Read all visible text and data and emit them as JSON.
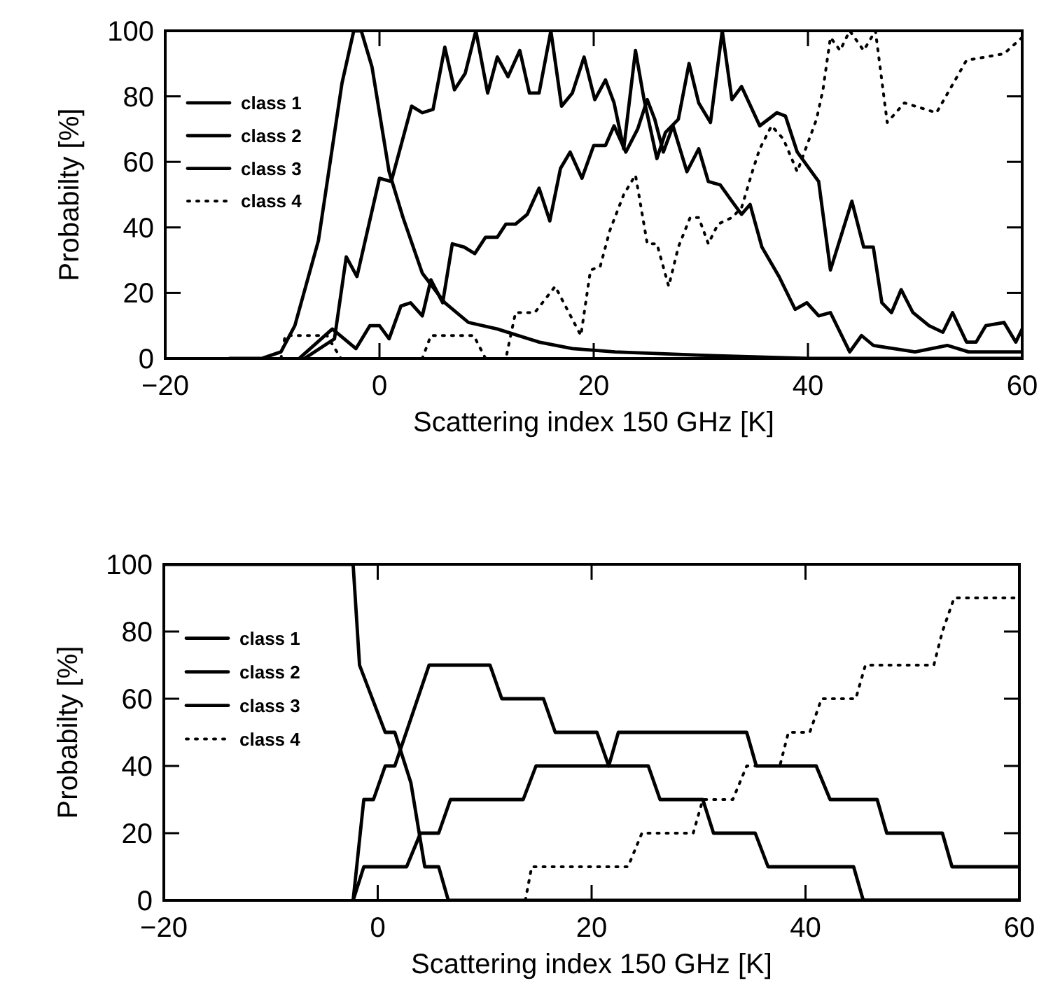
{
  "chart_data": [
    {
      "type": "line",
      "xlabel": "Scattering index 150 GHz [K]",
      "ylabel": "Probabilty [%]",
      "xlim": [
        -20,
        60
      ],
      "ylim": [
        0,
        100
      ],
      "xticks": [
        -20,
        0,
        20,
        40,
        60
      ],
      "yticks": [
        0,
        20,
        40,
        60,
        80,
        100
      ],
      "legend": "top left",
      "series": [
        {
          "name": "class 1",
          "color": "#000000",
          "line_style": "solid",
          "x": [
            -14,
            -11,
            -9.2,
            -7.9,
            -5.7,
            -3.5,
            -2.4,
            -1.7,
            -0.7,
            0.9,
            2.2,
            4.0,
            6.1,
            8.3,
            11,
            14.9,
            18,
            22,
            30,
            40,
            60
          ],
          "values": [
            0,
            0,
            2,
            10,
            36,
            84,
            100,
            100,
            89,
            57,
            43,
            26,
            17,
            11,
            9,
            5,
            3,
            2,
            1,
            0,
            0
          ]
        },
        {
          "name": "class 2",
          "color": "#000000",
          "line_style": "solid",
          "x": [
            -7,
            -4.2,
            -3.1,
            -2.1,
            0,
            1.1,
            3,
            4,
            5,
            6.1,
            7,
            8,
            9,
            10.1,
            11,
            12,
            13.1,
            14,
            14.9,
            16,
            17,
            18,
            19.1,
            20.1,
            21.1,
            21.9,
            22.8,
            23.9,
            24.7,
            25.9,
            26.7,
            27.9,
            28.9,
            29.8,
            30.9,
            32,
            32.9,
            33.8,
            35.5,
            37.1,
            37.9,
            39,
            41,
            42.1,
            44.1,
            45.2,
            46.1,
            46.9,
            47.8,
            48.7,
            49.8,
            51.3,
            52.6,
            53.5,
            54.8,
            55.7,
            56.6,
            58.3,
            59.4,
            60
          ],
          "values": [
            0,
            6,
            31,
            25,
            55,
            54,
            77,
            75,
            76,
            95,
            82,
            87,
            100,
            81,
            92,
            86,
            94,
            81,
            81,
            100,
            77,
            81,
            92,
            79,
            85,
            78,
            64,
            94,
            79,
            61,
            69,
            73,
            90,
            78,
            72,
            100,
            79,
            83,
            71,
            75,
            74,
            63,
            54,
            27,
            48,
            34,
            34,
            17,
            14,
            21,
            14,
            10,
            8,
            14,
            5,
            5,
            10,
            11,
            5,
            9
          ]
        },
        {
          "name": "class 3",
          "color": "#000000",
          "line_style": "solid",
          "x": [
            -7.5,
            -4.4,
            -2.2,
            -0.9,
            0,
            0.9,
            2,
            2.9,
            4,
            4.8,
            5.9,
            6.8,
            7.9,
            8.9,
            9.9,
            11,
            11.8,
            12.7,
            13.8,
            14.9,
            15.9,
            16.9,
            17.8,
            18.9,
            20,
            21.1,
            21.9,
            23,
            24.1,
            25,
            25.7,
            26.5,
            27.4,
            28.7,
            29.8,
            30.7,
            31.8,
            32.9,
            33.8,
            34.6,
            35.7,
            37.3,
            38.8,
            39.9,
            41,
            42.1,
            43.9,
            45,
            46.1,
            48,
            50,
            53,
            55,
            60
          ],
          "values": [
            0,
            9,
            3,
            10,
            10,
            6,
            16,
            17,
            13,
            24,
            17,
            35,
            34,
            32,
            37,
            37,
            41,
            41,
            44,
            52,
            42,
            58,
            63,
            55,
            65,
            65,
            71,
            63,
            70,
            79,
            73,
            63,
            71,
            57,
            64,
            54,
            53,
            48,
            44,
            47,
            34,
            25,
            15,
            17,
            13,
            14,
            2,
            7,
            4,
            3,
            2,
            4,
            2,
            2
          ]
        },
        {
          "name": "class 4",
          "color": "#000000",
          "line_style": "dotted",
          "x": [
            -9.2,
            -8.8,
            -7.5,
            -4.9,
            -3.6,
            4,
            4.8,
            8.8,
            9.9,
            11.8,
            12.7,
            14.5,
            16.4,
            18.8,
            19.7,
            20.6,
            21.5,
            22.8,
            23.9,
            25,
            25.9,
            27,
            27.9,
            29,
            29.8,
            30.7,
            31.6,
            32.9,
            33.8,
            34.9,
            35.5,
            36.6,
            37.7,
            39,
            39.9,
            40.8,
            41.4,
            42.1,
            43,
            43.9,
            45.2,
            46.3,
            47.4,
            49,
            52,
            54.8,
            58.3,
            60
          ],
          "values": [
            0,
            7,
            7,
            7,
            0,
            0,
            7,
            7,
            0,
            0,
            14,
            14,
            22,
            7,
            27,
            28,
            39,
            50,
            56,
            35,
            35,
            22,
            34,
            43,
            43,
            35,
            41,
            43,
            46,
            58,
            64,
            71,
            67,
            57,
            65,
            73,
            82,
            98,
            94,
            100,
            94,
            100,
            72,
            78,
            75,
            91,
            93,
            98
          ]
        }
      ]
    },
    {
      "type": "line",
      "xlabel": "Scattering index 150 GHz [K]",
      "ylabel": "Probabilty [%]",
      "xlim": [
        -20,
        60
      ],
      "ylim": [
        0,
        100
      ],
      "xticks": [
        -20,
        0,
        20,
        40,
        60
      ],
      "yticks": [
        0,
        20,
        40,
        60,
        80,
        100
      ],
      "legend": "top left",
      "series": [
        {
          "name": "class 1",
          "color": "#000000",
          "line_style": "solid",
          "x": [
            -20,
            -2.3,
            -1.7,
            0.7,
            1.6,
            3.1,
            4.4,
            5.7,
            6.6,
            60
          ],
          "values": [
            100,
            100,
            70,
            50,
            50,
            35,
            10,
            10,
            0,
            0
          ]
        },
        {
          "name": "class 2",
          "color": "#000000",
          "line_style": "solid",
          "x": [
            -2.3,
            -1.3,
            -0.4,
            0.7,
            1.6,
            4.8,
            10.5,
            11.6,
            15.5,
            16.6,
            20.5,
            21.6,
            22.5,
            34.5,
            35.4,
            41,
            42.3,
            46.7,
            47.6,
            52.8,
            53.7,
            60
          ],
          "values": [
            0,
            30,
            30,
            40,
            40,
            70,
            70,
            60,
            60,
            50,
            50,
            40,
            50,
            50,
            40,
            40,
            30,
            30,
            20,
            20,
            10,
            10
          ]
        },
        {
          "name": "class 3",
          "color": "#000000",
          "line_style": "solid",
          "x": [
            -2.3,
            -1.3,
            2.7,
            4,
            5.7,
            6.8,
            13.6,
            14.8,
            25.3,
            26.4,
            30.4,
            31.4,
            35.3,
            36.5,
            44.5,
            45.4,
            60
          ],
          "values": [
            0,
            10,
            10,
            20,
            20,
            30,
            30,
            40,
            40,
            30,
            30,
            20,
            20,
            10,
            10,
            0,
            0
          ]
        },
        {
          "name": "class 4",
          "color": "#000000",
          "line_style": "dotted",
          "x": [
            13.8,
            14.4,
            23.4,
            24.7,
            29.5,
            30.4,
            33.2,
            34.5,
            37.6,
            38.4,
            40.4,
            41.5,
            44.7,
            45.6,
            52,
            52.8,
            53.9,
            60
          ],
          "values": [
            0,
            10,
            10,
            20,
            20,
            30,
            30,
            40,
            40,
            50,
            50,
            60,
            60,
            70,
            70,
            80,
            90,
            90
          ]
        }
      ]
    }
  ]
}
